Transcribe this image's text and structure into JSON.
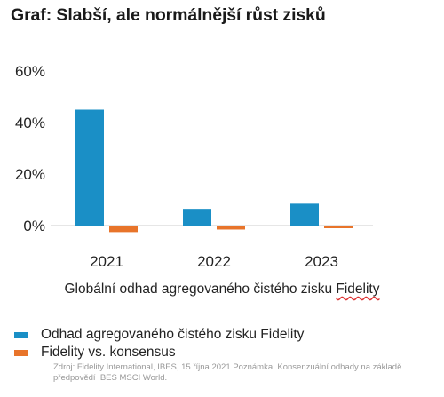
{
  "title": "Graf: Slabší, ale normálnější růst zisků",
  "xlabel_prefix": "Globální odhad agregovaného čistého zisku ",
  "xlabel_underlined": "Fidelity",
  "source": "Zdroj: Fidelity International, IBES, 15 října 2021 Poznámka: Konsenzuální odhady na základě předpovědí IBES MSCI World.",
  "chart_data": {
    "type": "bar",
    "categories": [
      "2021",
      "2022",
      "2023"
    ],
    "series": [
      {
        "name": "Odhad agregovaného čistého zisku Fidelity",
        "values": [
          45,
          6.5,
          8.5
        ],
        "color": "#1a8fc6"
      },
      {
        "name": "Fidelity vs. konsensus",
        "values": [
          -2.2,
          -1.2,
          -0.4
        ],
        "color": "#e8742a"
      }
    ],
    "yticks": [
      "0%",
      "20%",
      "40%",
      "60%"
    ],
    "ytick_values": [
      0,
      20,
      40,
      60
    ],
    "ylim": [
      -3,
      60
    ],
    "grid": false,
    "legend_position": "bottom-left"
  }
}
